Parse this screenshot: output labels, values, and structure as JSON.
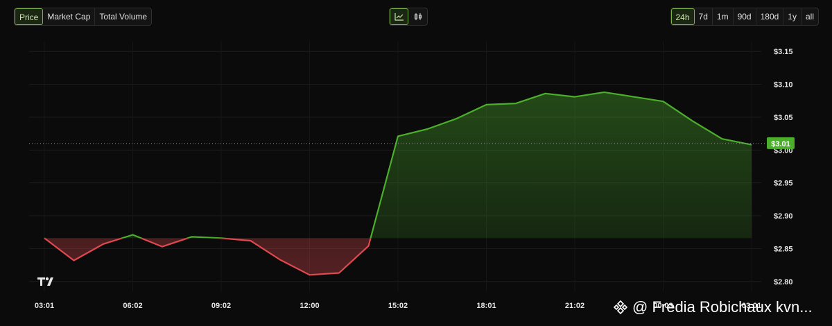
{
  "metric_tabs": [
    {
      "label": "Price",
      "active": true
    },
    {
      "label": "Market Cap",
      "active": false
    },
    {
      "label": "Total Volume",
      "active": false
    }
  ],
  "chart_type_buttons": [
    {
      "icon": "line-chart-icon",
      "active": true
    },
    {
      "icon": "candlestick-icon",
      "active": false
    }
  ],
  "time_ranges": [
    {
      "label": "24h",
      "active": true
    },
    {
      "label": "7d",
      "active": false
    },
    {
      "label": "1m",
      "active": false
    },
    {
      "label": "90d",
      "active": false
    },
    {
      "label": "180d",
      "active": false
    },
    {
      "label": "1y",
      "active": false
    },
    {
      "label": "all",
      "active": false
    }
  ],
  "chart_data": {
    "type": "line",
    "title": "",
    "xlabel": "",
    "ylabel": "",
    "ylim": [
      2.785,
      3.165
    ],
    "y_ticks": [
      "$2.80",
      "$2.85",
      "$2.90",
      "$2.95",
      "$3.00",
      "$3.05",
      "$3.10",
      "$3.15"
    ],
    "y_tick_values": [
      2.8,
      2.85,
      2.9,
      2.95,
      3.0,
      3.05,
      3.1,
      3.15
    ],
    "x_ticks": [
      "03:01",
      "06:02",
      "09:02",
      "12:00",
      "15:02",
      "18:01",
      "21:02",
      "00:03",
      "03:01"
    ],
    "x_tick_hours": [
      0,
      3,
      6,
      9,
      12,
      15,
      18,
      21,
      24
    ],
    "baseline": 2.866,
    "current_price": 3.01,
    "current_price_label": "$3.01",
    "grid": true,
    "series": [
      {
        "x": [
          0.0,
          1.0,
          2.0,
          3.0,
          4.0,
          5.0,
          6.0,
          7.0,
          8.0,
          9.0,
          10.0,
          11.0,
          12.0,
          13.0,
          14.0,
          15.0,
          16.0,
          17.0,
          18.0,
          19.0,
          20.0,
          21.0,
          22.0,
          23.0,
          24.0
        ],
        "values": [
          2.866,
          2.832,
          2.857,
          2.871,
          2.853,
          2.868,
          2.866,
          2.862,
          2.833,
          2.81,
          2.813,
          2.854,
          3.021,
          3.032,
          3.048,
          3.069,
          3.071,
          3.086,
          3.081,
          3.088,
          3.081,
          3.074,
          3.044,
          3.017,
          3.008
        ]
      }
    ],
    "up_color": "#4caf2c",
    "down_color": "#e0494f"
  },
  "watermark": {
    "text": "@ Fredia Robichaux kvn...",
    "icon": "binance-icon"
  },
  "logo": {
    "icon": "tradingview-icon"
  }
}
